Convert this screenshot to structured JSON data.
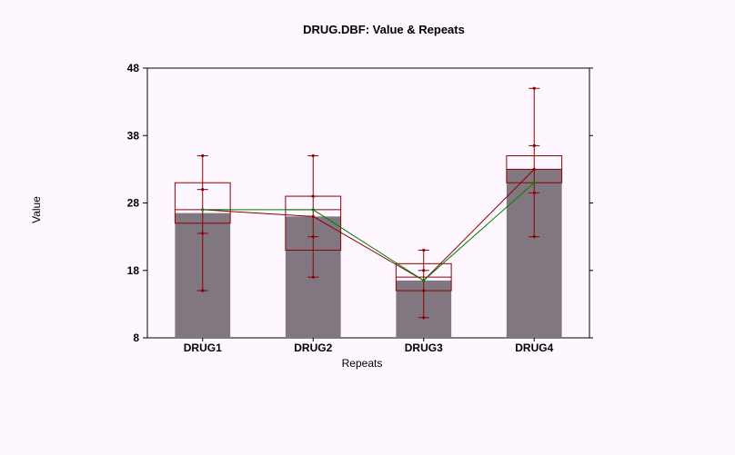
{
  "chart_data": {
    "type": "bar",
    "title": "DRUG.DBF: Value & Repeats",
    "xlabel": "Repeats",
    "ylabel": "Value",
    "ylim": [
      8,
      48
    ],
    "yticks": [
      "8",
      "18",
      "28",
      "38",
      "48"
    ],
    "categories": [
      "DRUG1",
      "DRUG2",
      "DRUG3",
      "DRUG4"
    ],
    "bars": [
      26.5,
      26,
      16.5,
      33
    ],
    "boxes": [
      {
        "q1": 25,
        "median": 27,
        "q3": 31
      },
      {
        "q1": 21,
        "median": 27,
        "q3": 29
      },
      {
        "q1": 15,
        "median": 17,
        "q3": 19
      },
      {
        "q1": 31,
        "median": 33,
        "q3": 35
      }
    ],
    "whiskers_outer": [
      {
        "low": 15,
        "high": 35
      },
      {
        "low": 17,
        "high": 35
      },
      {
        "low": 11,
        "high": 21
      },
      {
        "low": 23,
        "high": 45
      }
    ],
    "whiskers_inner": [
      {
        "low": 23.5,
        "high": 30
      },
      {
        "low": 23,
        "high": 29
      },
      {
        "low": 15,
        "high": 18
      },
      {
        "low": 29.5,
        "high": 36.5
      }
    ],
    "series": [
      {
        "values": [
          27,
          26,
          16.5,
          33
        ],
        "color": "#8b0000"
      },
      {
        "values": [
          27,
          27,
          16.5,
          31
        ],
        "color": "#008000"
      }
    ],
    "colors": {
      "bar": "#807780",
      "box": "#8b0000",
      "background": "#fff7ff"
    }
  }
}
